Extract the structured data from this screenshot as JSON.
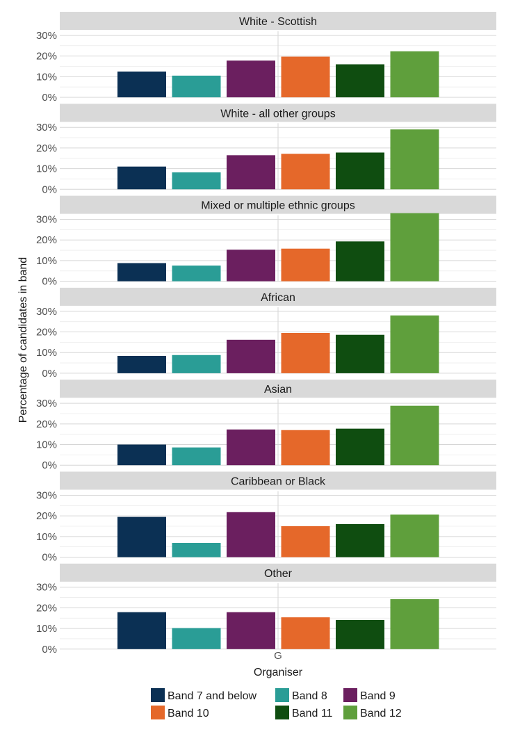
{
  "chart_data": {
    "type": "bar",
    "xlabel": "Organiser",
    "ylabel": "Percentage of candidates in band",
    "x_tick": "G",
    "ylim": [
      0,
      32
    ],
    "y_ticks": [
      0,
      10,
      20,
      30
    ],
    "y_tick_labels": [
      "0%",
      "10%",
      "20%",
      "30%"
    ],
    "grid": true,
    "legend_position": "bottom",
    "series": [
      {
        "name": "Band 7 and below",
        "color": "#0b3054"
      },
      {
        "name": "Band 8",
        "color": "#2a9d96"
      },
      {
        "name": "Band 9",
        "color": "#6b1f5f"
      },
      {
        "name": "Band 10",
        "color": "#e5682a"
      },
      {
        "name": "Band 11",
        "color": "#0f4d10"
      },
      {
        "name": "Band 12",
        "color": "#5f9f3c"
      }
    ],
    "panels": [
      {
        "title": "White - Scottish",
        "values": [
          12.5,
          10.5,
          17.8,
          19.7,
          16.0,
          22.3
        ]
      },
      {
        "title": "White - all other groups",
        "values": [
          11.0,
          8.2,
          16.5,
          17.2,
          17.8,
          29.0
        ]
      },
      {
        "title": "Mixed or multiple ethnic groups",
        "values": [
          8.8,
          7.6,
          15.3,
          15.8,
          19.3,
          33.0
        ]
      },
      {
        "title": "African",
        "values": [
          8.4,
          8.8,
          16.2,
          19.5,
          18.6,
          28.0
        ]
      },
      {
        "title": "Asian",
        "values": [
          10.0,
          8.6,
          17.3,
          17.0,
          17.7,
          28.8
        ]
      },
      {
        "title": "Caribbean or Black",
        "values": [
          19.5,
          6.9,
          21.8,
          15.0,
          16.0,
          20.6
        ]
      },
      {
        "title": "Other",
        "values": [
          17.9,
          10.2,
          17.9,
          15.4,
          14.1,
          24.2
        ]
      }
    ]
  }
}
